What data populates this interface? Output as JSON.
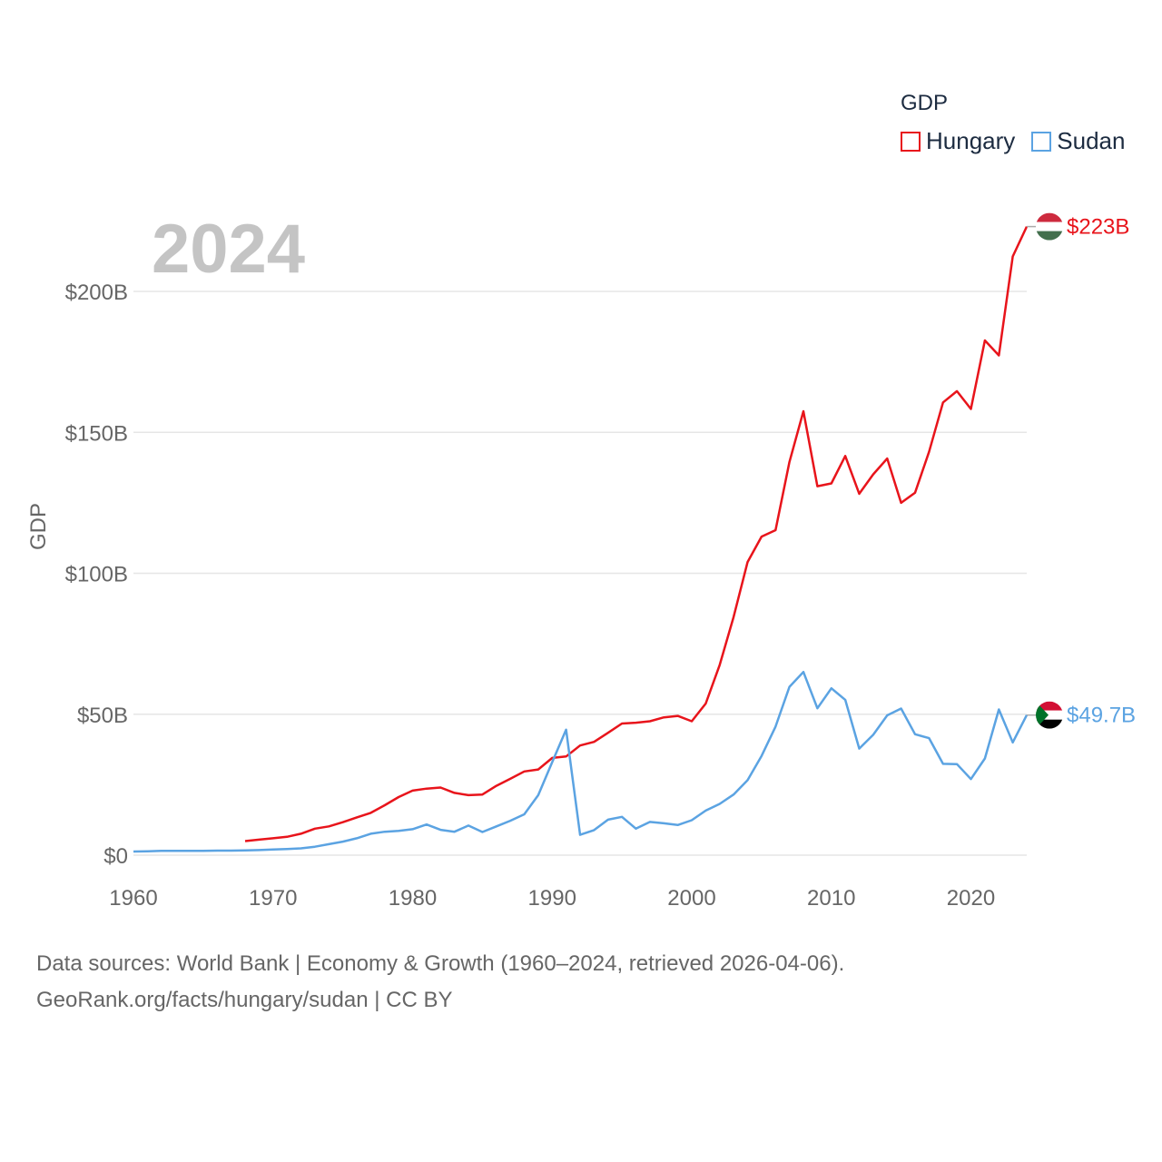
{
  "colors": {
    "hungary": "#e8141b",
    "sudan": "#5ba3e2",
    "grid": "#e6e6e6",
    "axis_text": "#666666",
    "year_watermark": "#c4c4c4",
    "legend_text": "#1c2b40"
  },
  "legend": {
    "title": "GDP",
    "items": [
      {
        "label": "Hungary",
        "icon": "hungary-swatch"
      },
      {
        "label": "Sudan",
        "icon": "sudan-swatch"
      }
    ]
  },
  "year_label": "2024",
  "end_labels": {
    "hungary": "$223B",
    "sudan": "$49.7B"
  },
  "flags": {
    "hungary": "hungary-flag-icon",
    "sudan": "sudan-flag-icon"
  },
  "source": {
    "line1": "Data sources: World Bank | Economy & Growth (1960–2024, retrieved 2026-04-06).",
    "line2": "GeoRank.org/facts/hungary/sudan | CC BY"
  },
  "chart_data": {
    "type": "line",
    "title": "",
    "xlabel": "",
    "ylabel": "GDP",
    "xlim": [
      1960,
      2024
    ],
    "ylim": [
      0,
      200
    ],
    "y_unit": "billion USD",
    "x_ticks": [
      1960,
      1970,
      1980,
      1990,
      2000,
      2010,
      2020
    ],
    "x_tick_labels": [
      "1960",
      "1970",
      "1980",
      "1990",
      "2000",
      "2010",
      "2020"
    ],
    "y_ticks": [
      0,
      50,
      100,
      150,
      200
    ],
    "y_tick_labels": [
      "$0",
      "$50B",
      "$100B",
      "$150B",
      "$200B"
    ],
    "grid": true,
    "legend_position": "top-right",
    "series": [
      {
        "name": "Hungary",
        "color": "#e8141b",
        "x": [
          1968,
          1969,
          1970,
          1971,
          1972,
          1973,
          1974,
          1975,
          1976,
          1977,
          1978,
          1979,
          1980,
          1981,
          1982,
          1983,
          1984,
          1985,
          1986,
          1987,
          1988,
          1989,
          1990,
          1991,
          1992,
          1993,
          1994,
          1995,
          1996,
          1997,
          1998,
          1999,
          2000,
          2001,
          2002,
          2003,
          2004,
          2005,
          2006,
          2007,
          2008,
          2009,
          2010,
          2011,
          2012,
          2013,
          2014,
          2015,
          2016,
          2017,
          2018,
          2019,
          2020,
          2021,
          2022,
          2023,
          2024
        ],
        "values": [
          5.0,
          5.5,
          6.0,
          6.5,
          7.6,
          9.4,
          10.2,
          11.7,
          13.4,
          15.0,
          17.7,
          20.6,
          22.9,
          23.6,
          24.0,
          22.1,
          21.3,
          21.5,
          24.6,
          27.1,
          29.7,
          30.4,
          34.5,
          35.0,
          38.9,
          40.2,
          43.4,
          46.7,
          47.0,
          47.5,
          48.9,
          49.4,
          47.5,
          53.8,
          67.5,
          84.5,
          104.0,
          113.0,
          115.3,
          139.5,
          157.5,
          130.9,
          131.9,
          141.6,
          128.2,
          135.1,
          140.7,
          125.0,
          128.6,
          143.1,
          160.6,
          164.6,
          158.3,
          182.6,
          177.3,
          212.4,
          223.0
        ]
      },
      {
        "name": "Sudan",
        "color": "#5ba3e2",
        "x": [
          1960,
          1961,
          1962,
          1963,
          1964,
          1965,
          1966,
          1967,
          1968,
          1969,
          1970,
          1971,
          1972,
          1973,
          1974,
          1975,
          1976,
          1977,
          1978,
          1979,
          1980,
          1981,
          1982,
          1983,
          1984,
          1985,
          1986,
          1987,
          1988,
          1989,
          1990,
          1991,
          1992,
          1993,
          1994,
          1995,
          1996,
          1997,
          1998,
          1999,
          2000,
          2001,
          2002,
          2003,
          2004,
          2005,
          2006,
          2007,
          2008,
          2009,
          2010,
          2011,
          2012,
          2013,
          2014,
          2015,
          2016,
          2017,
          2018,
          2019,
          2020,
          2021,
          2022,
          2023,
          2024
        ],
        "values": [
          1.3,
          1.4,
          1.5,
          1.5,
          1.5,
          1.5,
          1.6,
          1.6,
          1.7,
          1.8,
          2.0,
          2.2,
          2.4,
          3.0,
          3.9,
          4.8,
          6.0,
          7.6,
          8.3,
          8.6,
          9.2,
          10.9,
          9.0,
          8.3,
          10.5,
          8.2,
          10.2,
          12.2,
          14.5,
          21.3,
          33.0,
          44.5,
          7.2,
          8.9,
          12.6,
          13.6,
          9.4,
          11.8,
          11.3,
          10.7,
          12.4,
          15.8,
          18.2,
          21.5,
          26.6,
          35.2,
          45.6,
          59.7,
          65.0,
          52.1,
          59.2,
          55.1,
          37.8,
          42.7,
          49.6,
          52.0,
          42.9,
          41.5,
          32.4,
          32.3,
          27.0,
          34.3,
          51.7,
          40.0,
          49.7
        ]
      }
    ]
  }
}
